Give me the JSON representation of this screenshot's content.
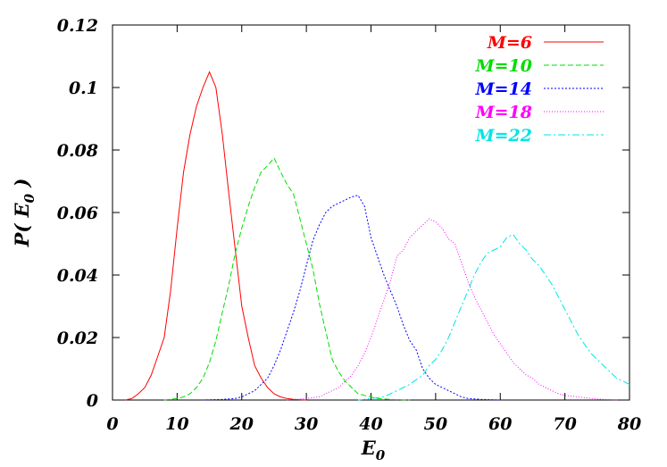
{
  "chart_data": {
    "type": "line",
    "xlabel_main": "E",
    "xlabel_sub": "0",
    "ylabel_prefix": "P( E",
    "ylabel_sub": "0",
    "ylabel_suffix": " )",
    "xlim": [
      0,
      80
    ],
    "ylim": [
      0,
      0.12
    ],
    "x_ticks": [
      0,
      10,
      20,
      30,
      40,
      50,
      60,
      70,
      80
    ],
    "x_tick_labels": [
      "0",
      "10",
      "20",
      "30",
      "40",
      "50",
      "60",
      "70",
      "80"
    ],
    "y_ticks": [
      0,
      0.02,
      0.04,
      0.06,
      0.08,
      0.1,
      0.12
    ],
    "y_tick_labels": [
      "0",
      "0.02",
      "0.04",
      "0.06",
      "0.08",
      "0.1",
      "0.12"
    ],
    "grid": false,
    "legend_position": "top-right",
    "series": [
      {
        "name": "M=6",
        "color": "#ff0000",
        "dash": "solid",
        "x": [
          2,
          3,
          4,
          5,
          6,
          7,
          8,
          9,
          10,
          11,
          12,
          13,
          14,
          15,
          16,
          17,
          18,
          19,
          20,
          21,
          22,
          23,
          24,
          25,
          26,
          27,
          28,
          30
        ],
        "y": [
          0,
          0.0005,
          0.002,
          0.004,
          0.008,
          0.014,
          0.02,
          0.035,
          0.055,
          0.073,
          0.085,
          0.094,
          0.1,
          0.105,
          0.1,
          0.085,
          0.066,
          0.048,
          0.03,
          0.02,
          0.011,
          0.007,
          0.004,
          0.002,
          0.001,
          0.0005,
          0.0002,
          0
        ]
      },
      {
        "name": "M=10",
        "color": "#00dd00",
        "dash": "6,3",
        "x": [
          8,
          10,
          11,
          12,
          13,
          14,
          15,
          16,
          17,
          18,
          19,
          20,
          21,
          22,
          23,
          24,
          25,
          26,
          27,
          28,
          29,
          30,
          31,
          32,
          33,
          34,
          35,
          36,
          37,
          38,
          39,
          40,
          41,
          43,
          46
        ],
        "y": [
          0,
          0.0005,
          0.001,
          0.002,
          0.004,
          0.007,
          0.012,
          0.019,
          0.028,
          0.037,
          0.047,
          0.055,
          0.062,
          0.068,
          0.073,
          0.075,
          0.0775,
          0.073,
          0.069,
          0.066,
          0.058,
          0.05,
          0.042,
          0.031,
          0.022,
          0.013,
          0.009,
          0.006,
          0.004,
          0.002,
          0.0015,
          0.001,
          0.0005,
          0.0002,
          0
        ]
      },
      {
        "name": "M=14",
        "color": "#0000ff",
        "dash": "2,2",
        "x": [
          14,
          17,
          19,
          20,
          21,
          22,
          23,
          24,
          25,
          26,
          27,
          28,
          29,
          30,
          31,
          32,
          33,
          34,
          35,
          36,
          37,
          38,
          39,
          40,
          41,
          42,
          43,
          44,
          45,
          46,
          47,
          48,
          49,
          50,
          51,
          52,
          53,
          54,
          55,
          57,
          60
        ],
        "y": [
          0,
          0.0002,
          0.0005,
          0.001,
          0.002,
          0.003,
          0.005,
          0.007,
          0.011,
          0.016,
          0.022,
          0.028,
          0.035,
          0.043,
          0.051,
          0.056,
          0.06,
          0.062,
          0.063,
          0.064,
          0.065,
          0.0655,
          0.062,
          0.052,
          0.046,
          0.04,
          0.035,
          0.03,
          0.024,
          0.019,
          0.016,
          0.01,
          0.007,
          0.005,
          0.004,
          0.003,
          0.002,
          0.001,
          0.0005,
          0.0002,
          0
        ]
      },
      {
        "name": "M=18",
        "color": "#ff00ff",
        "dash": "1,2",
        "x": [
          27,
          30,
          32,
          33,
          34,
          35,
          36,
          37,
          38,
          39,
          40,
          41,
          42,
          43,
          44,
          45,
          46,
          47,
          48,
          49,
          50,
          51,
          52,
          53,
          54,
          55,
          56,
          57,
          58,
          59,
          60,
          61,
          62,
          63,
          64,
          65,
          66,
          67,
          68,
          69,
          70,
          72,
          75,
          78
        ],
        "y": [
          0,
          0.0005,
          0.001,
          0.002,
          0.003,
          0.004,
          0.006,
          0.008,
          0.011,
          0.015,
          0.02,
          0.026,
          0.032,
          0.038,
          0.046,
          0.048,
          0.052,
          0.054,
          0.056,
          0.058,
          0.057,
          0.055,
          0.0515,
          0.05,
          0.044,
          0.038,
          0.033,
          0.029,
          0.025,
          0.021,
          0.018,
          0.015,
          0.012,
          0.01,
          0.008,
          0.007,
          0.005,
          0.004,
          0.003,
          0.002,
          0.0015,
          0.001,
          0.0003,
          0
        ]
      },
      {
        "name": "M=22",
        "color": "#00e5e5",
        "dash": "8,3,2,3",
        "x": [
          38,
          40,
          42,
          43,
          44,
          45,
          46,
          47,
          48,
          49,
          50,
          51,
          52,
          53,
          54,
          55,
          56,
          57,
          58,
          59,
          60,
          61,
          62,
          63,
          64,
          65,
          66,
          67,
          68,
          69,
          70,
          71,
          72,
          73,
          74,
          75,
          76,
          77,
          78,
          79,
          80
        ],
        "y": [
          0,
          0.0005,
          0.001,
          0.002,
          0.003,
          0.004,
          0.005,
          0.0065,
          0.008,
          0.011,
          0.013,
          0.016,
          0.02,
          0.025,
          0.03,
          0.035,
          0.04,
          0.044,
          0.047,
          0.048,
          0.049,
          0.052,
          0.053,
          0.05,
          0.048,
          0.045,
          0.043,
          0.04,
          0.037,
          0.033,
          0.029,
          0.025,
          0.021,
          0.018,
          0.015,
          0.013,
          0.011,
          0.009,
          0.007,
          0.006,
          0.005
        ]
      }
    ]
  }
}
